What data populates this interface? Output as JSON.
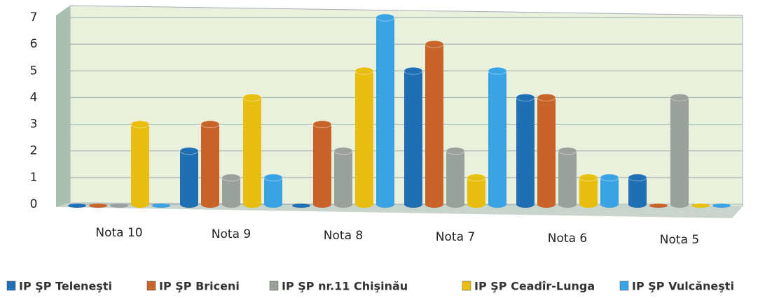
{
  "chart_data": {
    "type": "bar",
    "categories": [
      "Nota 10",
      "Nota 9",
      "Nota 8",
      "Nota 7",
      "Nota 6",
      "Nota 5"
    ],
    "series": [
      {
        "name": "IP ŞP Teleneşti",
        "color": "#1f6fb5",
        "values": [
          0,
          2,
          0,
          5,
          4,
          1
        ]
      },
      {
        "name": "IP ŞP Briceni",
        "color": "#c8642a",
        "values": [
          0,
          3,
          3,
          6,
          4,
          0
        ]
      },
      {
        "name": "IP ŞP nr.11 Chişinău",
        "color": "#9aa09a",
        "values": [
          0,
          1,
          2,
          2,
          2,
          4
        ]
      },
      {
        "name": "IP ŞP Ceadîr-Lunga",
        "color": "#e8bf10",
        "values": [
          3,
          4,
          5,
          1,
          1,
          0
        ]
      },
      {
        "name": "IP ŞP Vulcăneşti",
        "color": "#3aa3e3",
        "values": [
          0,
          1,
          7,
          5,
          1,
          0
        ]
      }
    ],
    "ylim": [
      0,
      7
    ],
    "yticks": [
      0,
      1,
      2,
      3,
      4,
      5,
      6,
      7
    ],
    "grid": true,
    "legend": "bottom"
  }
}
